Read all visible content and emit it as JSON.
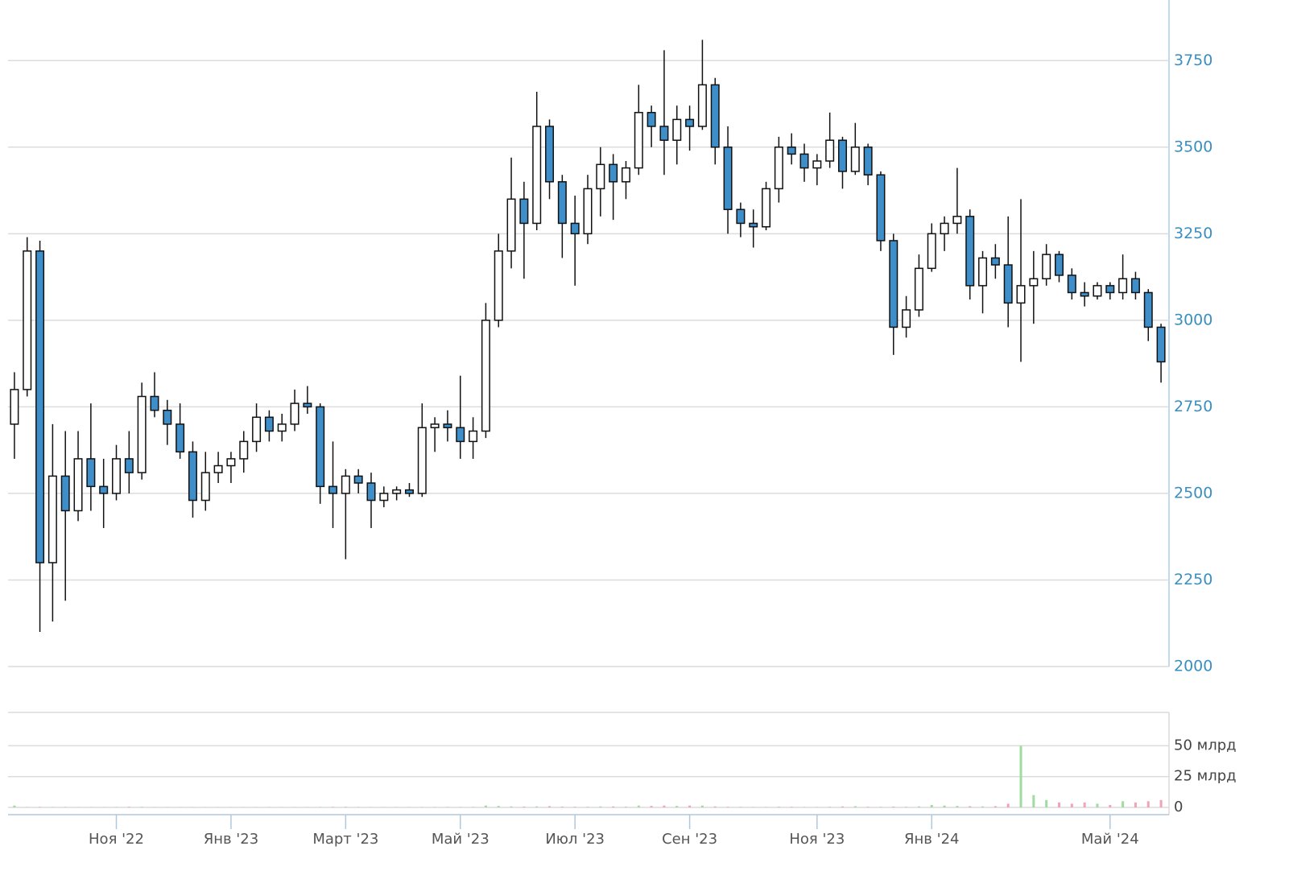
{
  "chart_data": [
    {
      "type": "candlestick",
      "categories": [
        null,
        null,
        null,
        null,
        null,
        null,
        null,
        null,
        "Ноя '22",
        null,
        null,
        null,
        null,
        null,
        null,
        null,
        null,
        "Янв '23",
        null,
        null,
        null,
        null,
        null,
        null,
        null,
        null,
        "Март '23",
        null,
        null,
        null,
        null,
        null,
        null,
        null,
        null,
        "Май '23",
        null,
        null,
        null,
        null,
        null,
        null,
        null,
        null,
        "Июл '23",
        null,
        null,
        null,
        null,
        null,
        null,
        null,
        null,
        "Сен '23",
        null,
        null,
        null,
        null,
        null,
        null,
        null,
        null,
        null,
        "Ноя '23",
        null,
        null,
        null,
        null,
        null,
        null,
        null,
        null,
        "Янв '24",
        null,
        null,
        null,
        null,
        null,
        null,
        null,
        null,
        null,
        null,
        null,
        null,
        null,
        "Май '24",
        null,
        null,
        null,
        null
      ],
      "open": [
        2700,
        2800,
        3200,
        2300,
        2550,
        2450,
        2600,
        2520,
        2500,
        2600,
        2560,
        2780,
        2740,
        2700,
        2620,
        2480,
        2560,
        2580,
        2600,
        2650,
        2720,
        2680,
        2700,
        2760,
        2750,
        2520,
        2500,
        2550,
        2530,
        2480,
        2500,
        2510,
        2500,
        2690,
        2700,
        2690,
        2650,
        2680,
        3000,
        3200,
        3350,
        3280,
        3560,
        3400,
        3280,
        3250,
        3380,
        3450,
        3400,
        3440,
        3600,
        3560,
        3520,
        3580,
        3560,
        3680,
        3500,
        3320,
        3280,
        3270,
        3380,
        3500,
        3480,
        3440,
        3460,
        3520,
        3430,
        3500,
        3420,
        3230,
        2980,
        3030,
        3150,
        3250,
        3280,
        3300,
        3100,
        3180,
        3160,
        3050,
        3100,
        3120,
        3190,
        3130,
        3080,
        3070,
        3100,
        3080,
        3120,
        3080,
        2980
      ],
      "high": [
        2850,
        3240,
        3230,
        2700,
        2680,
        2680,
        2760,
        2600,
        2640,
        2680,
        2820,
        2850,
        2770,
        2760,
        2650,
        2620,
        2620,
        2620,
        2680,
        2760,
        2740,
        2730,
        2800,
        2810,
        2760,
        2650,
        2570,
        2570,
        2560,
        2520,
        2520,
        2530,
        2760,
        2720,
        2740,
        2840,
        2720,
        3050,
        3250,
        3470,
        3400,
        3660,
        3580,
        3420,
        3360,
        3420,
        3500,
        3480,
        3460,
        3680,
        3620,
        3780,
        3620,
        3620,
        3810,
        3700,
        3560,
        3340,
        3320,
        3400,
        3530,
        3540,
        3510,
        3480,
        3600,
        3530,
        3570,
        3510,
        3430,
        3250,
        3070,
        3190,
        3280,
        3300,
        3440,
        3320,
        3200,
        3220,
        3300,
        3350,
        3200,
        3220,
        3200,
        3150,
        3110,
        3110,
        3110,
        3190,
        3140,
        3090,
        2990
      ],
      "low": [
        2600,
        2780,
        2100,
        2130,
        2190,
        2420,
        2450,
        2400,
        2480,
        2500,
        2540,
        2720,
        2640,
        2600,
        2430,
        2450,
        2530,
        2530,
        2560,
        2620,
        2650,
        2650,
        2680,
        2730,
        2470,
        2400,
        2310,
        2500,
        2400,
        2460,
        2480,
        2490,
        2490,
        2620,
        2650,
        2600,
        2600,
        2660,
        2980,
        3150,
        3120,
        3260,
        3350,
        3180,
        3100,
        3220,
        3300,
        3290,
        3350,
        3420,
        3500,
        3420,
        3450,
        3490,
        3550,
        3450,
        3250,
        3240,
        3210,
        3260,
        3340,
        3450,
        3400,
        3390,
        3440,
        3380,
        3420,
        3390,
        3200,
        2900,
        2950,
        3010,
        3140,
        3200,
        3250,
        3060,
        3020,
        3120,
        2980,
        2880,
        2990,
        3100,
        3110,
        3060,
        3040,
        3060,
        3060,
        3060,
        3060,
        2940,
        2820
      ],
      "close": [
        2800,
        3200,
        2300,
        2550,
        2450,
        2600,
        2520,
        2500,
        2600,
        2560,
        2780,
        2740,
        2700,
        2620,
        2480,
        2560,
        2580,
        2600,
        2650,
        2720,
        2680,
        2700,
        2760,
        2750,
        2520,
        2500,
        2550,
        2530,
        2480,
        2500,
        2510,
        2500,
        2690,
        2700,
        2690,
        2650,
        2680,
        3000,
        3200,
        3350,
        3280,
        3560,
        3400,
        3280,
        3250,
        3380,
        3450,
        3400,
        3440,
        3600,
        3560,
        3520,
        3580,
        3560,
        3680,
        3500,
        3320,
        3280,
        3270,
        3380,
        3500,
        3480,
        3440,
        3460,
        3520,
        3430,
        3500,
        3420,
        3230,
        2980,
        3030,
        3150,
        3250,
        3280,
        3300,
        3100,
        3180,
        3160,
        3050,
        3100,
        3120,
        3190,
        3130,
        3080,
        3070,
        3100,
        3080,
        3120,
        3080,
        2980,
        2880
      ],
      "up_color": "#ffffff",
      "down_color": "#3d8ec9",
      "stroke_color": "#111111",
      "ylim": [
        2000,
        3925
      ],
      "yticks": [
        2000,
        2250,
        2500,
        2750,
        3000,
        3250,
        3500,
        3750
      ],
      "grid": true
    },
    {
      "type": "bar",
      "values": [
        1.5,
        0.3,
        0.4,
        0.3,
        0.3,
        0.2,
        0.2,
        0.2,
        0.3,
        0.5,
        0.5,
        0.2,
        0.2,
        0.2,
        0.2,
        0.2,
        0.2,
        0.2,
        0.2,
        0.2,
        0.2,
        0.2,
        0.2,
        0.2,
        0.3,
        0.4,
        0.5,
        0.3,
        0.2,
        0.2,
        0.2,
        0.2,
        0.3,
        0.3,
        0.3,
        0.3,
        0.4,
        1.5,
        1.2,
        0.8,
        0.6,
        0.8,
        1,
        0.6,
        0.5,
        0.5,
        0.8,
        0.8,
        0.6,
        1.5,
        1.2,
        1.5,
        1.2,
        1.5,
        1.5,
        0.8,
        0.5,
        0.4,
        0.3,
        0.3,
        0.6,
        0.5,
        0.3,
        0.3,
        0.5,
        0.8,
        1,
        0.5,
        0.4,
        0.6,
        0.5,
        0.8,
        2,
        1.5,
        1.2,
        1,
        0.8,
        1,
        3,
        50,
        10,
        6,
        4,
        3,
        4,
        3,
        2,
        5,
        4,
        5,
        6
      ],
      "up_color": "#9fdc9f",
      "down_color": "#f2a3b5",
      "ylim": [
        0,
        77
      ],
      "yticks": [
        0,
        {
          "value": 25,
          "label": "25 млрд"
        },
        {
          "value": 50,
          "label": "50 млрд"
        }
      ],
      "grid": true
    }
  ]
}
